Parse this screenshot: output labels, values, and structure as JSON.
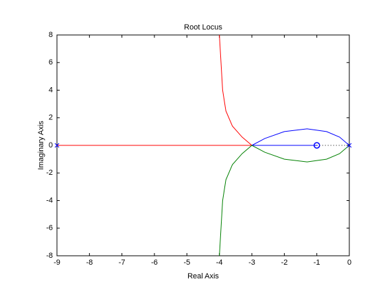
{
  "chart_data": {
    "type": "line",
    "title": "Root Locus",
    "x_label": "Real Axis",
    "y_label": "Imaginary Axis",
    "xlim": [
      -9,
      0
    ],
    "ylim": [
      -8,
      8
    ],
    "xticks": [
      -9,
      -8,
      -7,
      -6,
      -5,
      -4,
      -3,
      -2,
      -1,
      0
    ],
    "yticks": [
      -8,
      -6,
      -4,
      -2,
      0,
      2,
      4,
      6,
      8
    ],
    "series": [
      {
        "color": "#ff0000",
        "x": [
          -9,
          -3,
          -3.3,
          -3.6,
          -3.8,
          -3.9,
          -3.95,
          -4.0
        ],
        "y": [
          0,
          0,
          0.6,
          1.4,
          2.5,
          4,
          6,
          8
        ]
      },
      {
        "color": "#0000ff",
        "x": [
          0,
          -0.3,
          -0.7,
          -1.3,
          -2,
          -2.6,
          -3,
          -1
        ],
        "y": [
          0,
          0.6,
          1.0,
          1.2,
          1.0,
          0.5,
          0,
          0
        ]
      },
      {
        "color": "#008000",
        "x": [
          0,
          -0.3,
          -0.7,
          -1.3,
          -2,
          -2.6,
          -3,
          -3.3,
          -3.6,
          -3.8,
          -3.9,
          -3.95,
          -4.0
        ],
        "y": [
          0,
          -0.6,
          -1.0,
          -1.2,
          -1.0,
          -0.5,
          0,
          -0.6,
          -1.4,
          -2.5,
          -4,
          -6,
          -8
        ]
      },
      {
        "color": "#000000",
        "dash": true,
        "x": [
          -1,
          0
        ],
        "y": [
          0,
          0
        ]
      }
    ],
    "poles": [
      [
        -9,
        0
      ],
      [
        0,
        0
      ]
    ],
    "zeros": [
      [
        -1,
        0
      ]
    ],
    "marker_color": "#0000ff"
  }
}
